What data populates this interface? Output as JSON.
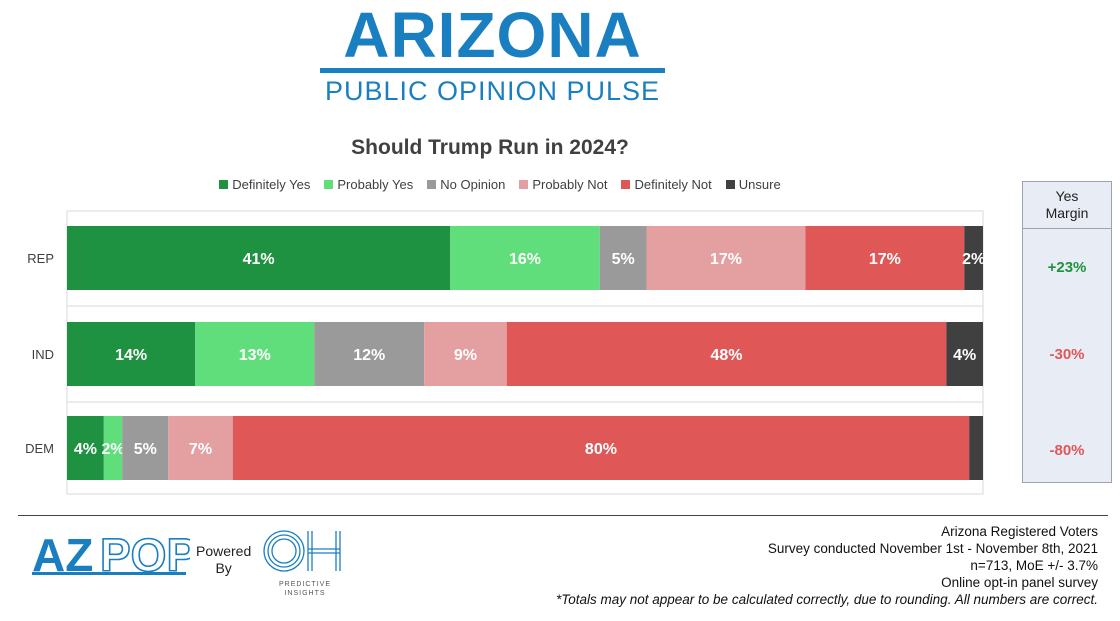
{
  "header": {
    "logo_title": "ARIZONA",
    "logo_subtitle": "PUBLIC OPINION PULSE"
  },
  "chart_data": {
    "type": "bar",
    "orientation": "horizontal",
    "stacked": true,
    "title": "Should Trump Run in 2024?",
    "categories": [
      "REP",
      "IND",
      "DEM"
    ],
    "series": [
      {
        "name": "Definitely Yes",
        "color": "#1e9240",
        "values": [
          41,
          14,
          4
        ],
        "labels": [
          "41%",
          "14%",
          "4%"
        ]
      },
      {
        "name": "Probably Yes",
        "color": "#5fde7b",
        "values": [
          16,
          13,
          2
        ],
        "labels": [
          "16%",
          "13%",
          "2%"
        ]
      },
      {
        "name": "No Opinion",
        "color": "#9a9a9a",
        "values": [
          5,
          12,
          5
        ],
        "labels": [
          "5%",
          "12%",
          "5%"
        ]
      },
      {
        "name": "Probably Not",
        "color": "#e4a0a0",
        "values": [
          17,
          9,
          7
        ],
        "labels": [
          "17%",
          "9%",
          "7%"
        ]
      },
      {
        "name": "Definitely Not",
        "color": "#e05757",
        "values": [
          17,
          48,
          80
        ],
        "labels": [
          "17%",
          "48%",
          "80%"
        ]
      },
      {
        "name": "Unsure",
        "color": "#404040",
        "values": [
          2,
          4,
          1.5
        ],
        "labels": [
          "2%",
          "4%",
          ""
        ]
      }
    ],
    "xlim": [
      0,
      100
    ],
    "legend": "top",
    "grid": true
  },
  "margin_panel": {
    "header_line1": "Yes",
    "header_line2": "Margin",
    "values": [
      {
        "text": "+23%",
        "color": "#1e9240"
      },
      {
        "text": "-30%",
        "color": "#e05757"
      },
      {
        "text": "-80%",
        "color": "#e05757"
      }
    ]
  },
  "footer": {
    "azpop_logo": "AZPOP",
    "powered_line1": "Powered",
    "powered_line2": "By",
    "oh_logo": "OH",
    "oh_caption_line1": "PREDICTIVE",
    "oh_caption_line2": "INSIGHTS",
    "notes": [
      "Arizona Registered Voters",
      "Survey conducted November 1st - November 8th, 2021",
      "n=713, MoE +/- 3.7%",
      "Online opt-in panel survey"
    ],
    "disclaimer": "*Totals may not appear to be calculated correctly, due to rounding. All numbers are correct."
  }
}
